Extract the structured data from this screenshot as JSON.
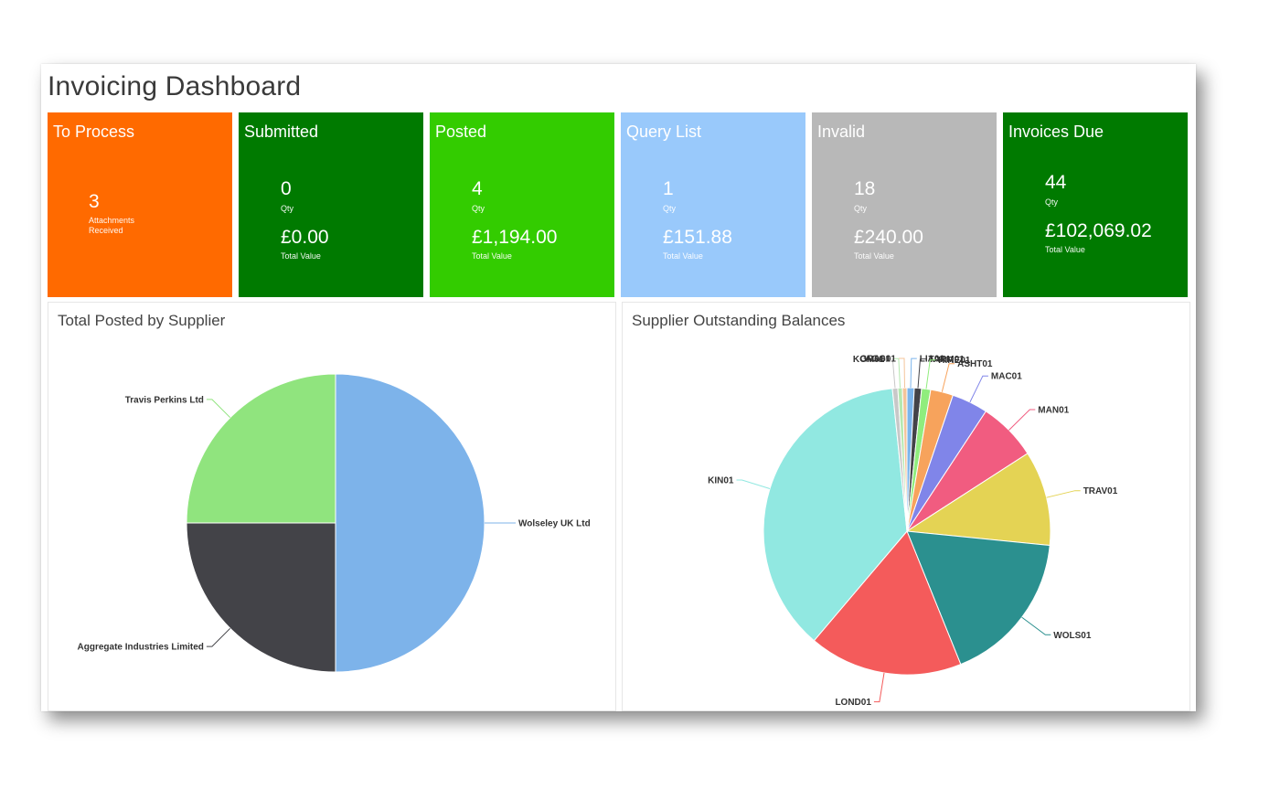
{
  "dashboard": {
    "title": "Invoicing Dashboard"
  },
  "tiles": [
    {
      "title": "To Process",
      "count": "3",
      "count_label": "Attachments Received",
      "value": "",
      "value_label": "",
      "color": "#ff6a00"
    },
    {
      "title": "Submitted",
      "count": "0",
      "count_label": "Qty",
      "value": "£0.00",
      "value_label": "Total Value",
      "color": "#007a00"
    },
    {
      "title": "Posted",
      "count": "4",
      "count_label": "Qty",
      "value": "£1,194.00",
      "value_label": "Total Value",
      "color": "#33cc00"
    },
    {
      "title": "Query List",
      "count": "1",
      "count_label": "Qty",
      "value": "£151.88",
      "value_label": "Total Value",
      "color": "#99c9fb"
    },
    {
      "title": "Invalid",
      "count": "18",
      "count_label": "Qty",
      "value": "£240.00",
      "value_label": "Total Value",
      "color": "#b8b8b8"
    },
    {
      "title": "Invoices Due",
      "count": "44",
      "count_label": "Qty",
      "value": "£102,069.02",
      "value_label": "Total Value",
      "color": "#007a00"
    }
  ],
  "chart_data": [
    {
      "type": "pie",
      "title": "Total Posted by Supplier",
      "labels": [
        "Wolseley UK Ltd",
        "Aggregate Industries Limited",
        "Travis Perkins Ltd"
      ],
      "values": [
        50,
        25,
        25
      ],
      "colors": [
        "#7db3ea",
        "#434348",
        "#90e47e"
      ]
    },
    {
      "type": "pie",
      "title": "Supplier Outstanding Balances",
      "labels": [
        "LIA01",
        "TARM01",
        "HIRE01",
        "ASHT01",
        "MAC01",
        "MAN01",
        "TRAV01",
        "WOLS01",
        "LOND01",
        "KIN01",
        "KOM01",
        "GRA01",
        "AGG01"
      ],
      "values": [
        0.8,
        0.8,
        1.0,
        2.5,
        4.0,
        6.5,
        10.5,
        17.0,
        17.0,
        36.5,
        0.6,
        0.5,
        0.5
      ],
      "colors": [
        "#7cb5ec",
        "#434348",
        "#90ed7d",
        "#f7a35c",
        "#8085e9",
        "#f15c80",
        "#e4d354",
        "#2b908f",
        "#f45b5b",
        "#91e8e1",
        "#c8c8c8",
        "#b5e8b0",
        "#f4c49a"
      ]
    }
  ]
}
